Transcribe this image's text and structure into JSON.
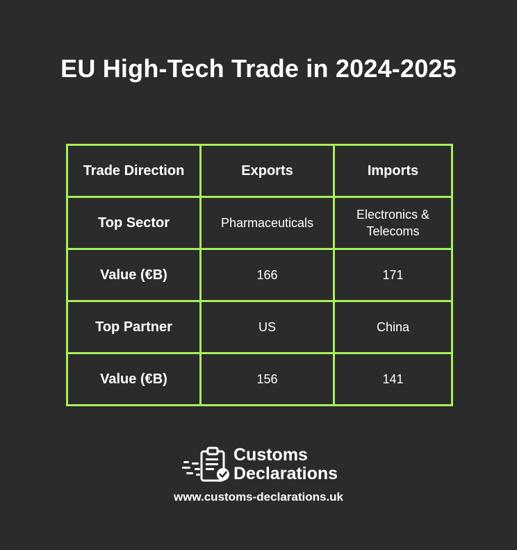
{
  "title": "EU High-Tech Trade in 2024-2025",
  "colors": {
    "background": "#2b2b2b",
    "grid_lines": "#a6f05a",
    "text": "#ffffff"
  },
  "chart_data": {
    "type": "table",
    "columns": [
      "Trade Direction",
      "Exports",
      "Imports"
    ],
    "rows": [
      {
        "label": "Top Sector",
        "exports": "Pharmaceuticals",
        "imports": "Electronics & Telecoms"
      },
      {
        "label": "Value (€B)",
        "exports": "166",
        "imports": "171"
      },
      {
        "label": "Top Partner",
        "exports": "US",
        "imports": "China"
      },
      {
        "label": "Value (€B)",
        "exports": "156",
        "imports": "141"
      }
    ]
  },
  "footer": {
    "logo_line1": "Customs",
    "logo_line2": "Declarations",
    "logo_icon": "clipboard-check-icon",
    "url": "www.customs-declarations.uk"
  }
}
